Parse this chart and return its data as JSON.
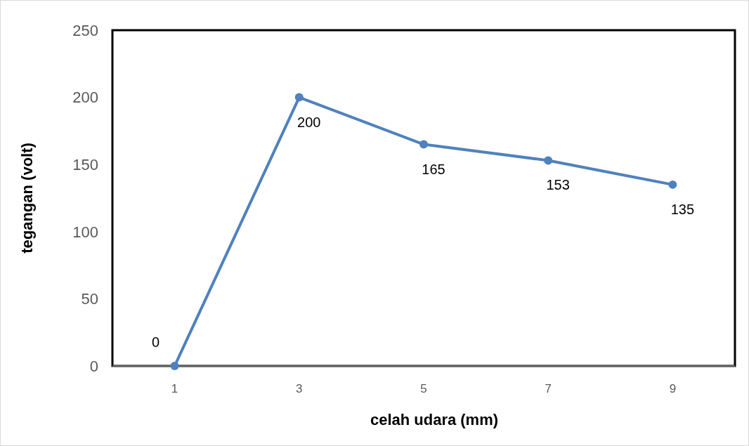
{
  "chart_data": {
    "type": "line",
    "xlabel": "celah udara (mm)",
    "ylabel": "tegangan (volt)",
    "categories": [
      "1",
      "3",
      "5",
      "7",
      "9"
    ],
    "series": [
      {
        "color": "#4f81bd",
        "values": [
          0,
          200,
          165,
          153,
          135
        ]
      }
    ],
    "ylim": [
      0,
      250
    ],
    "yticks": [
      0,
      50,
      100,
      150,
      200,
      250
    ],
    "grid": false,
    "marker": "circle",
    "line_style": "solid",
    "data_labels": true
  }
}
